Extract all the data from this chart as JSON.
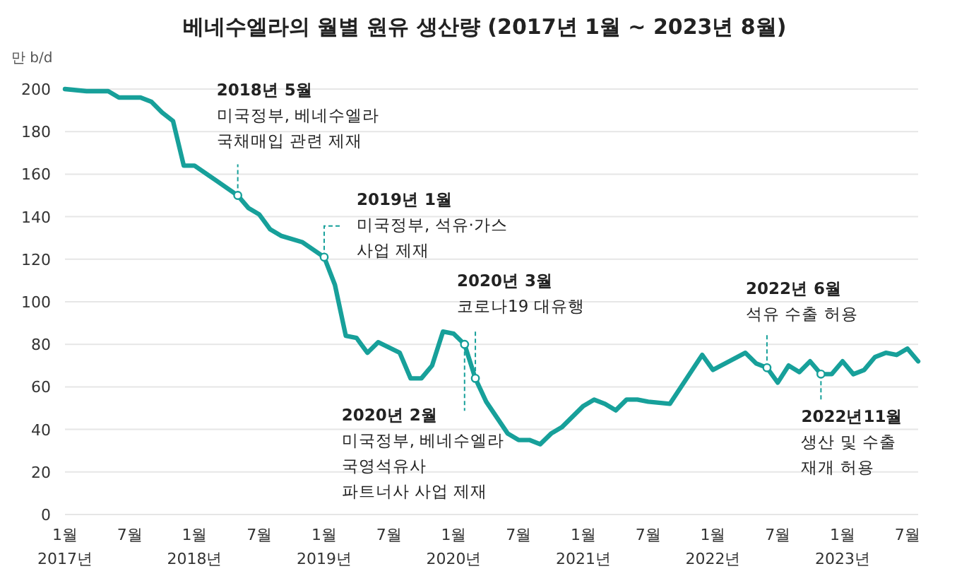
{
  "chart_data": {
    "type": "line",
    "title": "베네수엘라의 월별 원유 생산량 (2017년 1월 ~ 2023년 8월)",
    "ylabel": "만 b/d",
    "x": [
      "2017-01",
      "2017-03",
      "2017-04",
      "2017-05",
      "2017-06",
      "2017-08",
      "2017-09",
      "2017-10",
      "2017-11",
      "2017-12",
      "2018-01",
      "2018-03",
      "2018-05",
      "2018-06",
      "2018-07",
      "2018-08",
      "2018-09",
      "2018-11",
      "2019-01",
      "2019-02",
      "2019-03",
      "2019-04",
      "2019-05",
      "2019-06",
      "2019-08",
      "2019-09",
      "2019-10",
      "2019-11",
      "2019-12",
      "2020-01",
      "2020-02",
      "2020-03",
      "2020-04",
      "2020-06",
      "2020-07",
      "2020-08",
      "2020-09",
      "2020-10",
      "2020-11",
      "2021-01",
      "2021-02",
      "2021-03",
      "2021-04",
      "2021-05",
      "2021-06",
      "2021-07",
      "2021-09",
      "2021-12",
      "2022-01",
      "2022-04",
      "2022-05",
      "2022-06",
      "2022-07",
      "2022-08",
      "2022-09",
      "2022-10",
      "2022-11",
      "2022-12",
      "2023-01",
      "2023-02",
      "2023-03",
      "2023-04",
      "2023-05",
      "2023-06",
      "2023-07",
      "2023-08"
    ],
    "series": [
      {
        "color": "#17a09a",
        "values": [
          200,
          199,
          199,
          199,
          196,
          196,
          194,
          189,
          185,
          164,
          164,
          157,
          150,
          144,
          141,
          134,
          131,
          128,
          121,
          108,
          84,
          83,
          76,
          81,
          76,
          64,
          64,
          70,
          86,
          85,
          80,
          64,
          53,
          38,
          35,
          35,
          33,
          38,
          41,
          51,
          54,
          52,
          49,
          54,
          54,
          53,
          52,
          75,
          68,
          76,
          71,
          69,
          62,
          70,
          67,
          72,
          66,
          66,
          72,
          66,
          68,
          74,
          76,
          75,
          78,
          72
        ]
      }
    ],
    "ylim": [
      0,
      200
    ],
    "yticks": [
      0,
      20,
      40,
      60,
      80,
      100,
      120,
      140,
      160,
      180,
      200
    ],
    "xlim": [
      "2017-01",
      "2023-08"
    ],
    "xticks": [
      {
        "value": "2017-01",
        "label": "1월\n2017년"
      },
      {
        "value": "2017-07",
        "label": "7월"
      },
      {
        "value": "2018-01",
        "label": "1월\n2018년"
      },
      {
        "value": "2018-07",
        "label": "7월"
      },
      {
        "value": "2019-01",
        "label": "1월\n2019년"
      },
      {
        "value": "2019-07",
        "label": "7월"
      },
      {
        "value": "2020-01",
        "label": "1월\n2020년"
      },
      {
        "value": "2020-07",
        "label": "7월"
      },
      {
        "value": "2021-01",
        "label": "1월\n2021년"
      },
      {
        "value": "2021-07",
        "label": "7월"
      },
      {
        "value": "2022-01",
        "label": "1월\n2022년"
      },
      {
        "value": "2022-07",
        "label": "7월"
      },
      {
        "value": "2023-01",
        "label": "1월\n2023년"
      },
      {
        "value": "2023-07",
        "label": "7월"
      }
    ],
    "grid": "y",
    "marker": "none",
    "line_style": "solid",
    "annotations": [
      {
        "text": "2018년 5월\n미국정부, 베네수엘라\n국채매입 관련 제재",
        "x": "2018-05",
        "y": 150
      },
      {
        "text": "2019년 1월\n미국정부, 석유·가스\n사업 제재",
        "x": "2019-01",
        "y": 121
      },
      {
        "text": "2020년 2월\n미국정부, 베네수엘라\n국영석유사\n파트너사 사업 제재",
        "x": "2020-02",
        "y": 80
      },
      {
        "text": "2020년 3월\n코로나19 대유행",
        "x": "2020-03",
        "y": 64
      },
      {
        "text": "2022년 6월\n석유 수출 허용",
        "x": "2022-06",
        "y": 69
      },
      {
        "text": "2022년11월\n생산 및 수출\n재개 허용",
        "x": "2022-11",
        "y": 66
      }
    ]
  }
}
